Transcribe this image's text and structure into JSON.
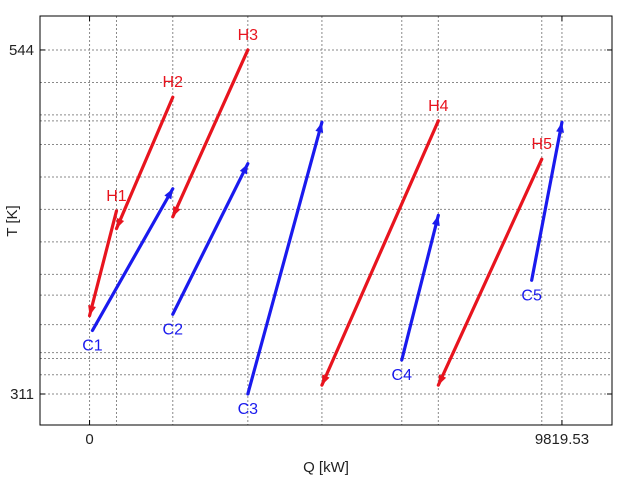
{
  "chart_data": {
    "type": "line",
    "title": "",
    "xlabel": "Q [kW]",
    "ylabel": "T [K]",
    "x_ticks": [
      {
        "value": 0,
        "label": "0"
      },
      {
        "value": 9819.53,
        "label": "9819.53"
      }
    ],
    "y_ticks": [
      {
        "value": 311,
        "label": "311"
      },
      {
        "value": 544,
        "label": "544"
      }
    ],
    "xlim": [
      -1030,
      10860
    ],
    "ylim": [
      290,
      567
    ],
    "grid": true,
    "grid_x": [
      0,
      560,
      1730,
      3290,
      4830,
      6490,
      7250,
      9400,
      9819.53
    ],
    "grid_y": [
      311,
      324,
      335,
      339,
      358,
      378,
      392,
      414,
      436,
      458,
      480,
      496,
      500,
      522,
      544
    ],
    "colors": {
      "hot": "#e8141e",
      "cold": "#1a1aee"
    },
    "series": [
      {
        "name": "H1",
        "kind": "hot",
        "x": [
          560,
          0
        ],
        "y": [
          435,
          364
        ]
      },
      {
        "name": "H2",
        "kind": "hot",
        "x": [
          1730,
          560
        ],
        "y": [
          512,
          423
        ]
      },
      {
        "name": "H3",
        "kind": "hot",
        "x": [
          3290,
          1730
        ],
        "y": [
          544,
          431
        ]
      },
      {
        "name": "H4",
        "kind": "hot",
        "x": [
          7250,
          4830
        ],
        "y": [
          496,
          317
        ]
      },
      {
        "name": "H5",
        "kind": "hot",
        "x": [
          9400,
          7250
        ],
        "y": [
          470,
          317
        ]
      },
      {
        "name": "C1",
        "kind": "cold",
        "x": [
          60,
          1730
        ],
        "y": [
          354,
          450
        ]
      },
      {
        "name": "C2",
        "kind": "cold",
        "x": [
          1730,
          3290
        ],
        "y": [
          365,
          467
        ]
      },
      {
        "name": "C3",
        "kind": "cold",
        "x": [
          3290,
          4830
        ],
        "y": [
          311,
          495
        ]
      },
      {
        "name": "C4",
        "kind": "cold",
        "x": [
          6490,
          7250
        ],
        "y": [
          334,
          432
        ]
      },
      {
        "name": "C5",
        "kind": "cold",
        "x": [
          9190,
          9819.53
        ],
        "y": [
          388,
          495
        ]
      }
    ]
  }
}
